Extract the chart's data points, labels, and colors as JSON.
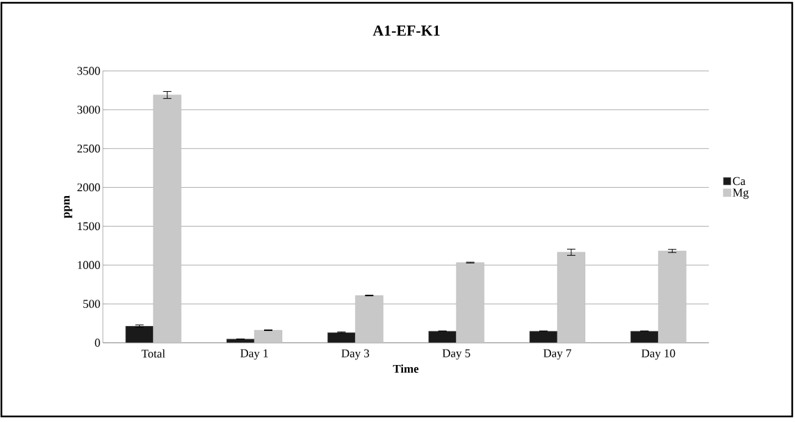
{
  "chart_data": {
    "type": "bar",
    "title": "A1-EF-K1",
    "xlabel": "Time",
    "ylabel": "ppm",
    "categories": [
      "Total",
      "Day 1",
      "Day 3",
      "Day 5",
      "Day 7",
      "Day 10"
    ],
    "series": [
      {
        "name": "Ca",
        "color": "#1a1a1a",
        "values": [
          215,
          48,
          131,
          150,
          150,
          150
        ],
        "errors": [
          15,
          null,
          8,
          null,
          null,
          null
        ]
      },
      {
        "name": "Mg",
        "color": "#c8c8c8",
        "values": [
          3190,
          161,
          608,
          1032,
          1165,
          1182
        ],
        "errors": [
          45,
          5,
          5,
          5,
          40,
          20
        ]
      }
    ],
    "ylim": [
      0,
      3500
    ],
    "yticks": [
      0,
      500,
      1000,
      1500,
      2000,
      2500,
      3000,
      3500
    ],
    "grid": "y",
    "legend": "right"
  }
}
